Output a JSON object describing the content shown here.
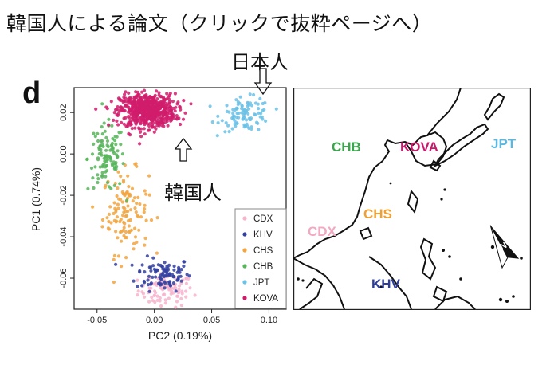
{
  "header": {
    "title": "韓国人による論文（クリックで抜粋ページへ）"
  },
  "annotations": {
    "japanese": "日本人",
    "korean": "韓国人"
  },
  "figure": {
    "panel_letter": "d"
  },
  "map": {
    "labels": [
      {
        "text": "CHB",
        "color": "#3aa64c"
      },
      {
        "text": "KOVA",
        "color": "#c8196a"
      },
      {
        "text": "JPT",
        "color": "#5ab8e0"
      },
      {
        "text": "CHS",
        "color": "#f0a030"
      },
      {
        "text": "CDX",
        "color": "#f4a8c0"
      },
      {
        "text": "KHV",
        "color": "#2d3e9a"
      }
    ],
    "compass": "N"
  },
  "chart_data": {
    "type": "scatter",
    "xlabel": "PC2 (0.19%)",
    "ylabel": "PC1 (0.74%)",
    "xlim": [
      -0.07,
      0.115
    ],
    "ylim": [
      -0.075,
      0.032
    ],
    "xticks": [
      -0.05,
      0.0,
      0.05,
      0.1
    ],
    "xtick_labels": [
      "-0.05",
      "0.00",
      "0.05",
      "0.10"
    ],
    "yticks": [
      0.02,
      0.0,
      -0.02,
      -0.04,
      -0.06
    ],
    "ytick_labels": [
      "0.02",
      "0.00",
      "-0.02",
      "-0.04",
      "-0.06"
    ],
    "legend_position": "bottom-right",
    "series": [
      {
        "name": "CDX",
        "color": "#f7b3cc",
        "center": [
          0.01,
          -0.066
        ],
        "spread": [
          0.012,
          0.004
        ],
        "n": 90
      },
      {
        "name": "KHV",
        "color": "#3340a0",
        "center": [
          0.008,
          -0.058
        ],
        "spread": [
          0.012,
          0.004
        ],
        "n": 95
      },
      {
        "name": "CHS",
        "color": "#f2a440",
        "center": [
          -0.025,
          -0.028
        ],
        "spread": [
          0.01,
          0.01
        ],
        "n": 120
      },
      {
        "name": "CHB",
        "color": "#57b55a",
        "center": [
          -0.042,
          -0.002
        ],
        "spread": [
          0.008,
          0.008
        ],
        "n": 110
      },
      {
        "name": "JPT",
        "color": "#6cc1e6",
        "center": [
          0.08,
          0.019
        ],
        "spread": [
          0.011,
          0.004
        ],
        "n": 100
      },
      {
        "name": "KOVA",
        "color": "#d11c6c",
        "center": [
          -0.006,
          0.021
        ],
        "spread": [
          0.012,
          0.004
        ],
        "n": 650
      }
    ]
  }
}
